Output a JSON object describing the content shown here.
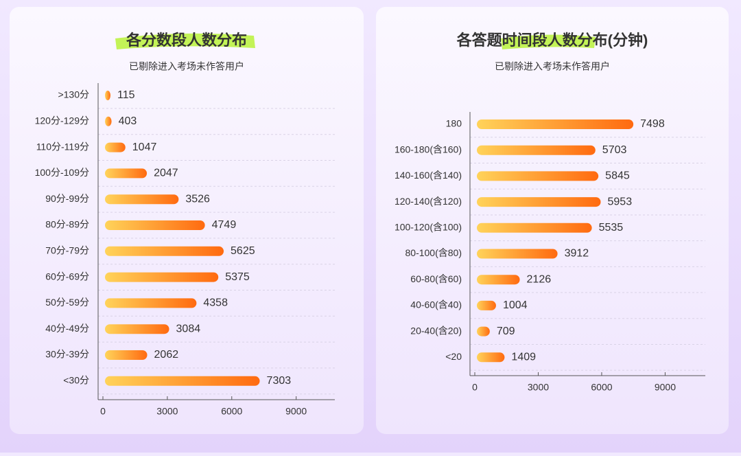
{
  "chart_data": [
    {
      "type": "barh",
      "title": "各分数段人数分布",
      "subtitle": "已剔除进入考场未作答用户",
      "categories": [
        ">130分",
        "120分-129分",
        "110分-119分",
        "100分-109分",
        "90分-99分",
        "80分-89分",
        "70分-79分",
        "60分-69分",
        "50分-59分",
        "40分-49分",
        "30分-39分",
        "<30分"
      ],
      "values": [
        115,
        403,
        1047,
        2047,
        3526,
        4749,
        5625,
        5375,
        4358,
        3084,
        2062,
        7303
      ],
      "xlim": [
        0,
        10800
      ],
      "xticks": [
        0,
        3000,
        6000,
        9000
      ],
      "color": "#ff7a1a",
      "grid": true
    },
    {
      "type": "barh",
      "title": "各答题时间段人数分布(分钟)",
      "subtitle": "已剔除进入考场未作答用户",
      "categories": [
        "180",
        "160-180(含160)",
        "140-160(含140)",
        "120-140(含120)",
        "100-120(含100)",
        "80-100(含80)",
        "60-80(含60)",
        "40-60(含40)",
        "20-40(含20)",
        "<20"
      ],
      "values": [
        7498,
        5703,
        5845,
        5953,
        5535,
        3912,
        2126,
        1004,
        709,
        1409
      ],
      "xlim": [
        0,
        10900
      ],
      "xticks": [
        0,
        3000,
        6000,
        9000
      ],
      "color": "#ff7a1a",
      "grid": true
    }
  ]
}
